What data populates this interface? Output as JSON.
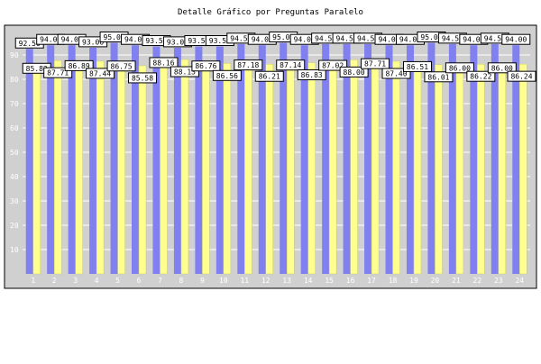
{
  "chart_data": {
    "type": "bar",
    "title": "Detalle Gráfico por Preguntas Paralelo",
    "xlabel": "",
    "ylabel": "",
    "ylim": [
      0,
      100
    ],
    "yticks": [
      10,
      20,
      30,
      40,
      50,
      60,
      70,
      80,
      90
    ],
    "grid": true,
    "categories": [
      "1",
      "2",
      "3",
      "4",
      "5",
      "6",
      "7",
      "8",
      "9",
      "10",
      "11",
      "12",
      "13",
      "14",
      "15",
      "16",
      "17",
      "18",
      "19",
      "20",
      "21",
      "22",
      "23",
      "24"
    ],
    "series": [
      {
        "color": "#8080f0",
        "values": [
          92.5,
          94.0,
          94.0,
          93.0,
          95.0,
          94.0,
          93.5,
          93.0,
          93.5,
          93.5,
          94.5,
          94.0,
          95.0,
          94.0,
          94.5,
          94.5,
          94.5,
          94.0,
          94.0,
          95.0,
          94.5,
          94.0,
          94.5,
          94.0
        ]
      },
      {
        "color": "#ffff90",
        "values": [
          85.82,
          87.71,
          86.89,
          87.44,
          86.75,
          85.58,
          88.16,
          88.13,
          86.76,
          86.56,
          87.18,
          86.21,
          87.14,
          86.83,
          87.02,
          88.0,
          87.71,
          87.4,
          86.51,
          86.01,
          86.0,
          86.22,
          86.0,
          86.24
        ]
      }
    ]
  }
}
